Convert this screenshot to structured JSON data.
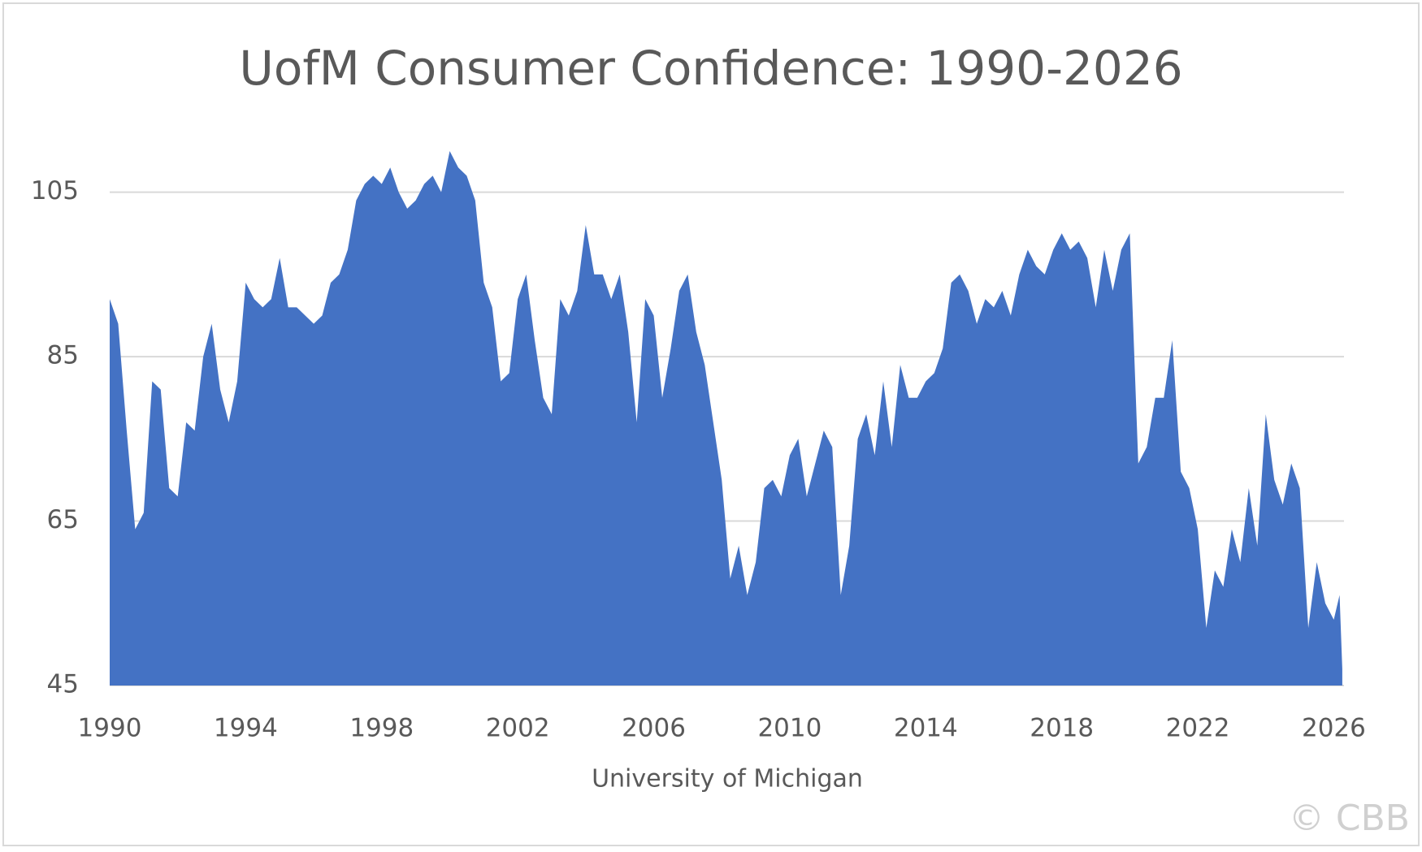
{
  "chart_data": {
    "type": "area",
    "title": "UofM Consumer Confidence: 1990-2026",
    "x_label": "University of Michigan",
    "watermark": "© CBB",
    "color": "#4472c4",
    "grid": true,
    "xlim": [
      1990,
      2026.3
    ],
    "xticks": [
      1990,
      1994,
      1998,
      2002,
      2006,
      2010,
      2014,
      2018,
      2022,
      2026
    ],
    "ylim": [
      45,
      110
    ],
    "yticks": [
      45,
      65,
      85,
      105
    ],
    "x": [
      1990,
      1990.25,
      1990.5,
      1990.75,
      1991,
      1991.25,
      1991.5,
      1991.75,
      1992,
      1992.25,
      1992.5,
      1992.75,
      1993,
      1993.25,
      1993.5,
      1993.75,
      1994,
      1994.25,
      1994.5,
      1994.75,
      1995,
      1995.25,
      1995.5,
      1995.75,
      1996,
      1996.25,
      1996.5,
      1996.75,
      1997,
      1997.25,
      1997.5,
      1997.75,
      1998,
      1998.25,
      1998.5,
      1998.75,
      1999,
      1999.25,
      1999.5,
      1999.75,
      2000,
      2000.25,
      2000.5,
      2000.75,
      2001,
      2001.25,
      2001.5,
      2001.75,
      2002,
      2002.25,
      2002.5,
      2002.75,
      2003,
      2003.25,
      2003.5,
      2003.75,
      2004,
      2004.25,
      2004.5,
      2004.75,
      2005,
      2005.25,
      2005.5,
      2005.75,
      2006,
      2006.25,
      2006.5,
      2006.75,
      2007,
      2007.25,
      2007.5,
      2007.75,
      2008,
      2008.25,
      2008.5,
      2008.75,
      2009,
      2009.25,
      2009.5,
      2009.75,
      2010,
      2010.25,
      2010.5,
      2010.75,
      2011,
      2011.25,
      2011.5,
      2011.75,
      2012,
      2012.25,
      2012.5,
      2012.75,
      2013,
      2013.25,
      2013.5,
      2013.75,
      2014,
      2014.25,
      2014.5,
      2014.75,
      2015,
      2015.25,
      2015.5,
      2015.75,
      2016,
      2016.25,
      2016.5,
      2016.75,
      2017,
      2017.25,
      2017.5,
      2017.75,
      2018,
      2018.25,
      2018.5,
      2018.75,
      2019,
      2019.25,
      2019.5,
      2019.75,
      2020,
      2020.25,
      2020.5,
      2020.75,
      2021,
      2021.25,
      2021.5,
      2021.75,
      2022,
      2022.25,
      2022.5,
      2022.75,
      2023,
      2023.25,
      2023.5,
      2023.75,
      2024,
      2024.25,
      2024.5,
      2024.75,
      2025,
      2025.25,
      2025.5,
      2025.75,
      2026,
      2026.17,
      2026.25
    ],
    "values": [
      92,
      89,
      76,
      64,
      66,
      82,
      81,
      69,
      68,
      77,
      76,
      85,
      89,
      81,
      77,
      82,
      94,
      92,
      91,
      92,
      97,
      91,
      91,
      90,
      89,
      90,
      94,
      95,
      98,
      104,
      106,
      107,
      106,
      108,
      105,
      103,
      104,
      106,
      107,
      105,
      110,
      108,
      107,
      104,
      94,
      91,
      82,
      83,
      92,
      95,
      87,
      80,
      78,
      92,
      90,
      93,
      101,
      95,
      95,
      92,
      95,
      88,
      77,
      92,
      90,
      80,
      86,
      93,
      95,
      88,
      84,
      77,
      70,
      58,
      62,
      56,
      60,
      69,
      70,
      68,
      73,
      75,
      68,
      72,
      76,
      74,
      56,
      62,
      75,
      78,
      73,
      82,
      74,
      84,
      80,
      80,
      82,
      83,
      86,
      94,
      95,
      93,
      89,
      92,
      91,
      93,
      90,
      95,
      98,
      96,
      95,
      98,
      100,
      98,
      99,
      97,
      91,
      98,
      93,
      98,
      100,
      72,
      74,
      80,
      80,
      87,
      71,
      69,
      64,
      52,
      59,
      57,
      64,
      60,
      69,
      62,
      78,
      70,
      67,
      72,
      69,
      52,
      60,
      55,
      53,
      56,
      47
    ]
  }
}
